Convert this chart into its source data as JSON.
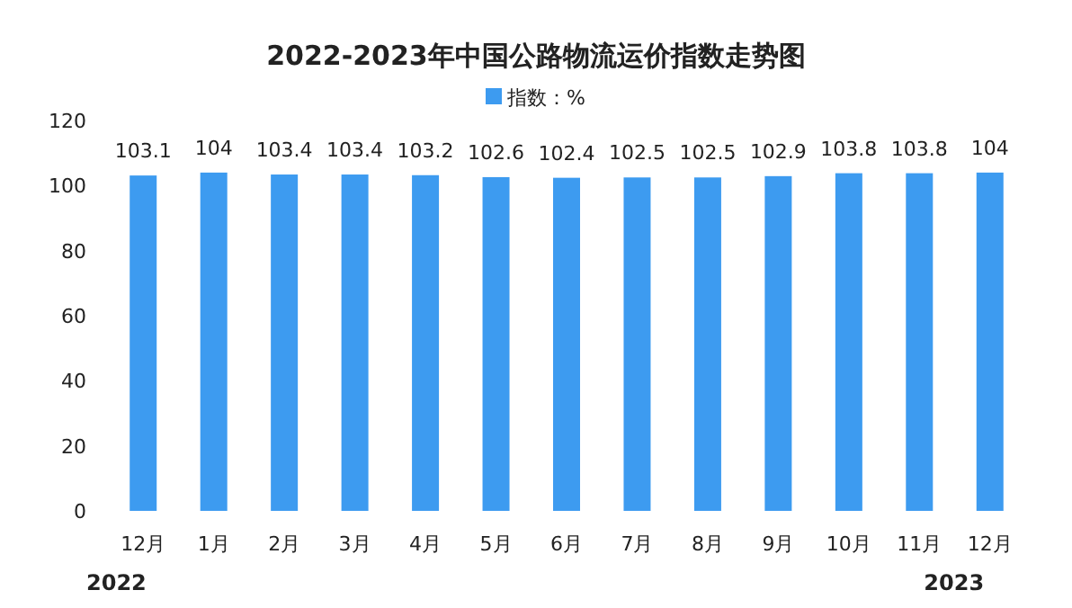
{
  "chart_data": {
    "type": "bar",
    "title": "2022-2023年中国公路物流运价指数走势图",
    "categories": [
      "12月",
      "1月",
      "2月",
      "3月",
      "4月",
      "5月",
      "6月",
      "7月",
      "8月",
      "9月",
      "10月",
      "11月",
      "12月"
    ],
    "series": [
      {
        "name": "指数：%",
        "color": "#3d9bf0",
        "values": [
          103.1,
          104,
          103.4,
          103.4,
          103.2,
          102.6,
          102.4,
          102.5,
          102.5,
          102.9,
          103.8,
          103.8,
          104
        ]
      }
    ],
    "ylim": [
      0,
      120
    ],
    "yticks": [
      0,
      20,
      40,
      60,
      80,
      100,
      120
    ],
    "data_labels": true,
    "legend": "top",
    "annotations": [
      "2022",
      "2023"
    ]
  }
}
